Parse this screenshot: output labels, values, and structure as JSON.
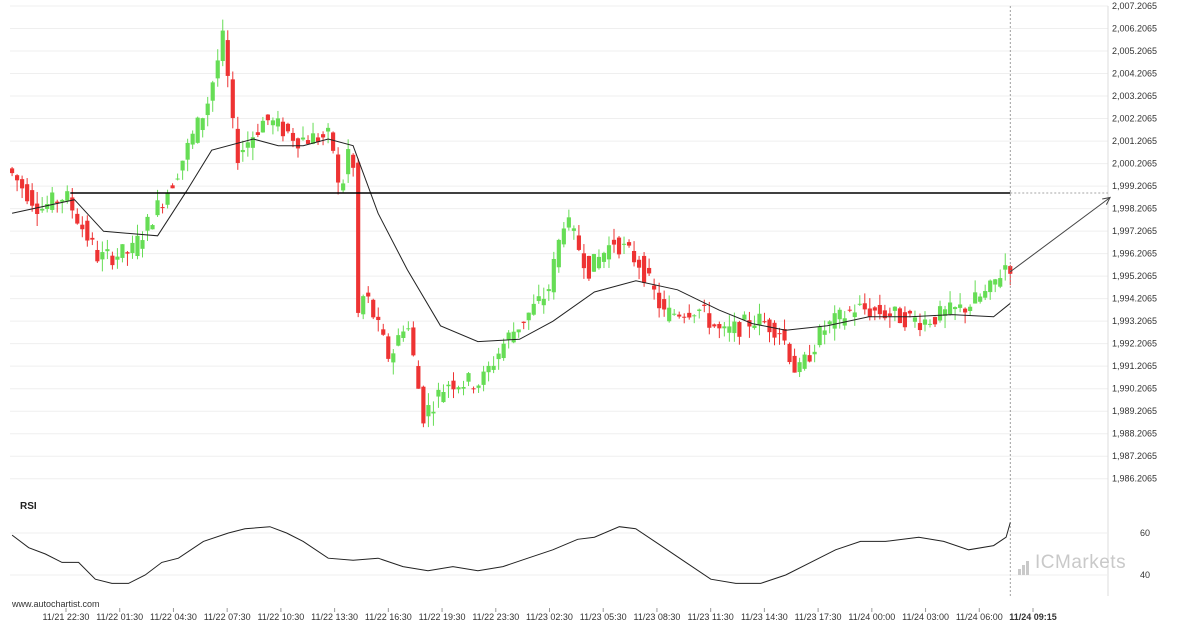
{
  "chart_data": [
    {
      "type": "candlestick",
      "title": "",
      "y_ticks": [
        "2,007.2065",
        "2,006.2065",
        "2,005.2065",
        "2,004.2065",
        "2,003.2065",
        "2,002.2065",
        "2,001.2065",
        "2,000.2065",
        "1,999.2065",
        "1,998.2065",
        "1,997.2065",
        "1,996.2065",
        "1,995.2065",
        "1,994.2065",
        "1,993.2065",
        "1,992.2065",
        "1,991.2065",
        "1,990.2065",
        "1,989.2065",
        "1,988.2065",
        "1,987.2065",
        "1,986.2065"
      ],
      "ylim": [
        1985.7065,
        2007.2065
      ],
      "x_ticks": [
        "11/21 22:30",
        "11/22 01:30",
        "11/22 04:30",
        "11/22 07:30",
        "11/22 10:30",
        "11/22 13:30",
        "11/22 16:30",
        "11/22 19:30",
        "11/22 23:30",
        "11/23 02:30",
        "11/23 05:30",
        "11/23 08:30",
        "11/23 11:30",
        "11/23 14:30",
        "11/23 17:30",
        "11/24 00:00",
        "11/24 03:00",
        "11/24 06:00",
        "11/24 09:15"
      ],
      "x_tick_current": "11/24 09:15",
      "candle_count": 200,
      "price_path": [
        [
          0,
          2000.0
        ],
        [
          8,
          1998.2
        ],
        [
          14,
          1998.8
        ],
        [
          22,
          1996.0
        ],
        [
          30,
          1996.3
        ],
        [
          40,
          1999.5
        ],
        [
          48,
          2002.8
        ],
        [
          52,
          2005.8
        ],
        [
          55,
          2000.5
        ],
        [
          62,
          2002.2
        ],
        [
          70,
          2001.3
        ],
        [
          78,
          2001.4
        ],
        [
          80,
          1998.6
        ],
        [
          83,
          2001.8
        ],
        [
          84,
          1993.2
        ],
        [
          86,
          1994.5
        ],
        [
          92,
          1991.5
        ],
        [
          96,
          1993.4
        ],
        [
          100,
          1989.0
        ],
        [
          106,
          1990.5
        ],
        [
          114,
          1990.5
        ],
        [
          120,
          1992.4
        ],
        [
          130,
          1994.5
        ],
        [
          134,
          1997.8
        ],
        [
          140,
          1995.5
        ],
        [
          146,
          1996.8
        ],
        [
          152,
          1995.8
        ],
        [
          158,
          1993.5
        ],
        [
          166,
          1993.8
        ],
        [
          172,
          1992.6
        ],
        [
          180,
          1993.3
        ],
        [
          186,
          1992.8
        ],
        [
          190,
          1990.8
        ],
        [
          196,
          1992.8
        ],
        [
          204,
          1993.8
        ],
        [
          210,
          1993.6
        ],
        [
          220,
          1993.2
        ],
        [
          230,
          1993.8
        ],
        [
          236,
          1994.5
        ],
        [
          240,
          1995.7
        ]
      ],
      "moving_average": [
        [
          0,
          1998.0
        ],
        [
          15,
          1998.6
        ],
        [
          22,
          1997.2
        ],
        [
          35,
          1997.0
        ],
        [
          42,
          1999.0
        ],
        [
          48,
          2000.8
        ],
        [
          58,
          2001.3
        ],
        [
          64,
          2001.0
        ],
        [
          70,
          2001.0
        ],
        [
          76,
          2001.3
        ],
        [
          82,
          2001.0
        ],
        [
          88,
          1998.0
        ],
        [
          95,
          1995.5
        ],
        [
          103,
          1993.0
        ],
        [
          112,
          1992.3
        ],
        [
          122,
          1992.4
        ],
        [
          130,
          1993.2
        ],
        [
          140,
          1994.5
        ],
        [
          150,
          1995.0
        ],
        [
          160,
          1994.6
        ],
        [
          170,
          1993.7
        ],
        [
          178,
          1993.1
        ],
        [
          186,
          1992.8
        ],
        [
          196,
          1993.0
        ],
        [
          206,
          1993.4
        ],
        [
          216,
          1993.4
        ],
        [
          226,
          1993.5
        ],
        [
          236,
          1993.4
        ],
        [
          240,
          1994.0
        ]
      ],
      "resistance_level": 1998.9,
      "projection": {
        "from": [
          240,
          1995.4
        ],
        "to": [
          264,
          1998.7
        ]
      }
    },
    {
      "type": "line",
      "name": "RSI",
      "y_ticks": [
        "60",
        "40"
      ],
      "ylim": [
        30,
        70
      ],
      "values": [
        [
          0,
          59
        ],
        [
          4,
          53
        ],
        [
          8,
          50
        ],
        [
          12,
          46
        ],
        [
          16,
          46
        ],
        [
          20,
          38
        ],
        [
          24,
          36
        ],
        [
          28,
          36
        ],
        [
          32,
          40
        ],
        [
          36,
          46
        ],
        [
          40,
          48
        ],
        [
          46,
          56
        ],
        [
          52,
          60
        ],
        [
          56,
          62
        ],
        [
          62,
          63
        ],
        [
          66,
          60
        ],
        [
          70,
          56
        ],
        [
          76,
          48
        ],
        [
          82,
          47
        ],
        [
          88,
          48
        ],
        [
          94,
          44
        ],
        [
          100,
          42
        ],
        [
          106,
          44
        ],
        [
          112,
          42
        ],
        [
          118,
          44
        ],
        [
          124,
          48
        ],
        [
          130,
          52
        ],
        [
          136,
          57
        ],
        [
          140,
          58
        ],
        [
          146,
          63
        ],
        [
          150,
          62
        ],
        [
          156,
          54
        ],
        [
          162,
          46
        ],
        [
          168,
          38
        ],
        [
          174,
          36
        ],
        [
          180,
          36
        ],
        [
          186,
          40
        ],
        [
          192,
          46
        ],
        [
          198,
          52
        ],
        [
          204,
          56
        ],
        [
          210,
          56
        ],
        [
          218,
          58
        ],
        [
          224,
          56
        ],
        [
          230,
          52
        ],
        [
          236,
          54
        ],
        [
          239,
          58
        ],
        [
          240,
          65
        ]
      ]
    }
  ],
  "panel_label": "RSI",
  "credit": "www.autochartist.com",
  "watermark": "ICMarkets",
  "colors": {
    "bull": "#66dd55",
    "bear": "#ee3333",
    "line": "#222222",
    "grid": "#efefef",
    "resistance": "#000000"
  }
}
